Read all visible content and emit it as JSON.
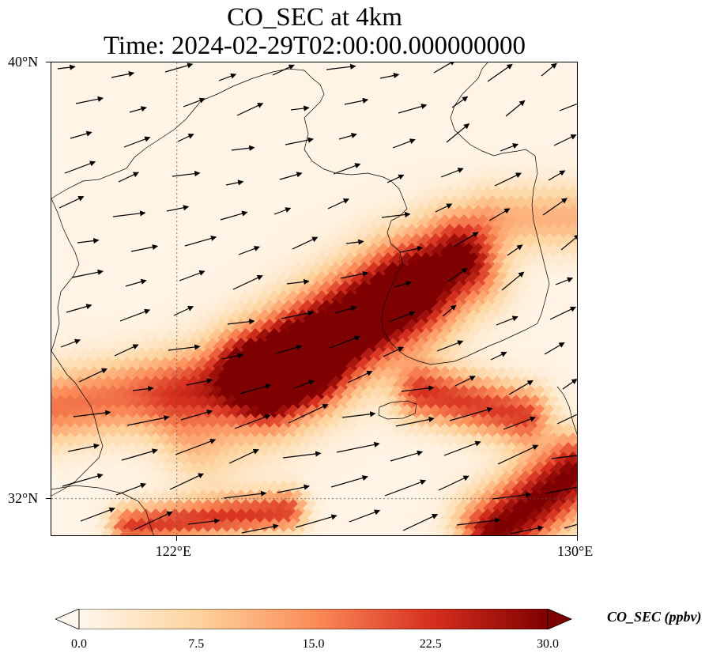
{
  "title": {
    "line1": "CO_SEC at 4km",
    "line2": "Time: 2024-02-29T02:00:00.000000000"
  },
  "map": {
    "lat_range": [
      31.3,
      40
    ],
    "lon_range": [
      119.5,
      130
    ],
    "gridlines": {
      "lon": [
        122
      ],
      "lat": [
        32
      ]
    },
    "lat_ticks": [
      {
        "value": 40,
        "label": "40°N"
      },
      {
        "value": 32,
        "label": "32°N"
      }
    ],
    "lon_ticks": [
      {
        "value": 122,
        "label": "122°E"
      },
      {
        "value": 130,
        "label": "130°E"
      }
    ],
    "colormap": "OrRd",
    "vector_color": "#000000",
    "coastline_color": "#000000"
  },
  "colorbar": {
    "label": "CO_SEC (ppbv)",
    "min": 0.0,
    "max": 30.0,
    "ticks": [
      "0.0",
      "7.5",
      "15.0",
      "22.5",
      "30.0"
    ],
    "extend": "both"
  }
}
